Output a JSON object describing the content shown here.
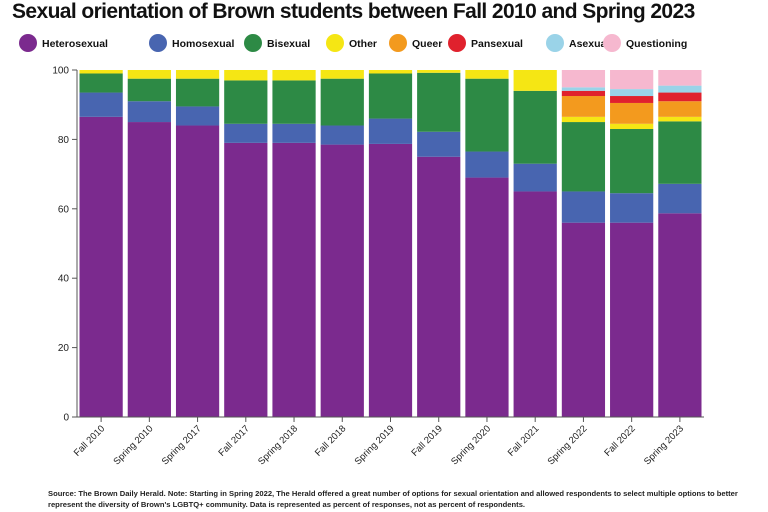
{
  "chart_data": {
    "type": "bar",
    "stacked": true,
    "title": "Sexual orientation of Brown students between Fall 2010 and Spring 2023",
    "xlabel": "",
    "ylabel": "",
    "ylim": [
      0,
      100
    ],
    "yticks": [
      0,
      20,
      40,
      60,
      80,
      100
    ],
    "grid": false,
    "legend_position": "top",
    "categories": [
      "Fall 2010",
      "Spring 2010",
      "Spring 2017",
      "Fall 2017",
      "Spring 2018",
      "Fall 2018",
      "Spring 2019",
      "Fall 2019",
      "Spring 2020",
      "Fall 2021",
      "Spring 2022",
      "Fall 2022",
      "Spring 2023"
    ],
    "series": [
      {
        "name": "Heterosexual",
        "color": "#7b2a8e",
        "values": [
          86.5,
          85.0,
          84.0,
          79.0,
          79.0,
          78.5,
          78.7,
          75.0,
          69.0,
          65.0,
          56.0,
          56.0,
          58.7
        ]
      },
      {
        "name": "Homosexual",
        "color": "#4865b0",
        "values": [
          7.0,
          6.0,
          5.5,
          5.5,
          5.5,
          5.5,
          7.3,
          7.2,
          7.5,
          8.0,
          9.0,
          8.5,
          8.5
        ]
      },
      {
        "name": "Bisexual",
        "color": "#2d8a45",
        "values": [
          5.5,
          6.5,
          8.0,
          12.5,
          12.5,
          13.5,
          13.0,
          17.0,
          21.0,
          21.0,
          20.0,
          18.5,
          18.0
        ]
      },
      {
        "name": "Other",
        "color": "#f5e614",
        "values": [
          1.0,
          2.5,
          2.5,
          3.0,
          3.0,
          2.5,
          1.0,
          0.8,
          2.5,
          6.0,
          1.5,
          1.5,
          1.3
        ]
      },
      {
        "name": "Queer",
        "color": "#f39a1e",
        "values": [
          0,
          0,
          0,
          0,
          0,
          0,
          0,
          0,
          0,
          0,
          6.0,
          6.0,
          4.5
        ]
      },
      {
        "name": "Pansexual",
        "color": "#e0212d",
        "values": [
          0,
          0,
          0,
          0,
          0,
          0,
          0,
          0,
          0,
          0,
          1.5,
          2.0,
          2.5
        ]
      },
      {
        "name": "Asexual",
        "color": "#9ad3e8",
        "values": [
          0,
          0,
          0,
          0,
          0,
          0,
          0,
          0,
          0,
          0,
          1.0,
          2.0,
          2.0
        ]
      },
      {
        "name": "Questioning",
        "color": "#f6b8cf",
        "values": [
          0,
          0,
          0,
          0,
          0,
          0,
          0,
          0,
          0,
          0,
          5.0,
          5.5,
          4.5
        ]
      }
    ]
  },
  "source_note": "Source: The Brown Daily Herald. Note: Starting in Spring 2022, The Herald offered a great number of options for sexual orientation and allowed respondents to select multiple options to better represent the diversity of Brown's LGBTQ+ community. Data is represented as percent of responses, not as percent of respondents."
}
